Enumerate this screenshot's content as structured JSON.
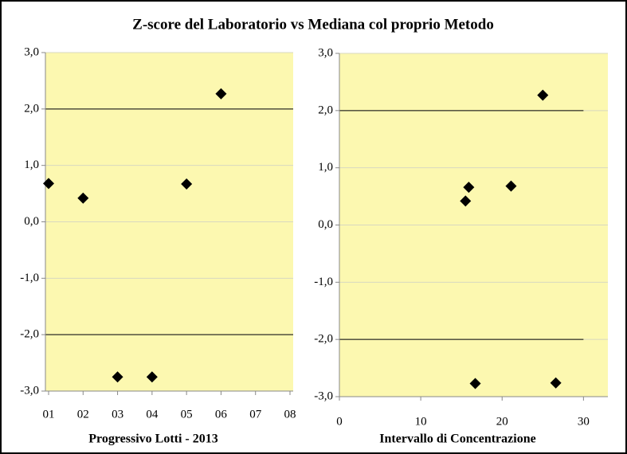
{
  "title": "Z-score del Laboratorio vs Mediana col proprio Metodo",
  "chart_data": [
    {
      "type": "scatter",
      "xlabel": "Progressivo Lotti  - 2013",
      "categories": [
        "01",
        "02",
        "03",
        "04",
        "05",
        "06",
        "07",
        "08"
      ],
      "values": [
        0.68,
        0.42,
        -2.75,
        -2.75,
        0.67,
        2.27,
        null,
        null
      ],
      "color": "#000000",
      "ylim": [
        -3,
        3
      ],
      "yticks": [
        {
          "value": -3,
          "label": "-3,0"
        },
        {
          "value": -2,
          "label": "-2,0"
        },
        {
          "value": -1,
          "label": "-1,0"
        },
        {
          "value": 0,
          "label": "0,0"
        },
        {
          "value": 1,
          "label": "1,0"
        },
        {
          "value": 2,
          "label": "2,0"
        },
        {
          "value": 3,
          "label": "3,0"
        }
      ],
      "hlines": [
        2,
        -2
      ],
      "grid": true
    },
    {
      "type": "scatter",
      "xlabel": "Intervallo di Concentrazione",
      "x": [
        15.5,
        15.9,
        16.7,
        21.1,
        25.0,
        26.6
      ],
      "values": [
        0.42,
        0.66,
        -2.77,
        0.68,
        2.27,
        -2.76
      ],
      "color": "#000000",
      "xlim": [
        0,
        33
      ],
      "xticks": [
        0,
        10,
        20,
        30
      ],
      "ylim": [
        -3,
        3
      ],
      "yticks": [
        {
          "value": -3,
          "label": "-3,0"
        },
        {
          "value": -2,
          "label": "-2,0"
        },
        {
          "value": -1,
          "label": "-1,0"
        },
        {
          "value": 0,
          "label": "0,0"
        },
        {
          "value": 1,
          "label": "1,0"
        },
        {
          "value": 2,
          "label": "2,0"
        },
        {
          "value": 3,
          "label": "3,0"
        }
      ],
      "hlines": [
        2,
        -2
      ],
      "grid": true
    }
  ]
}
